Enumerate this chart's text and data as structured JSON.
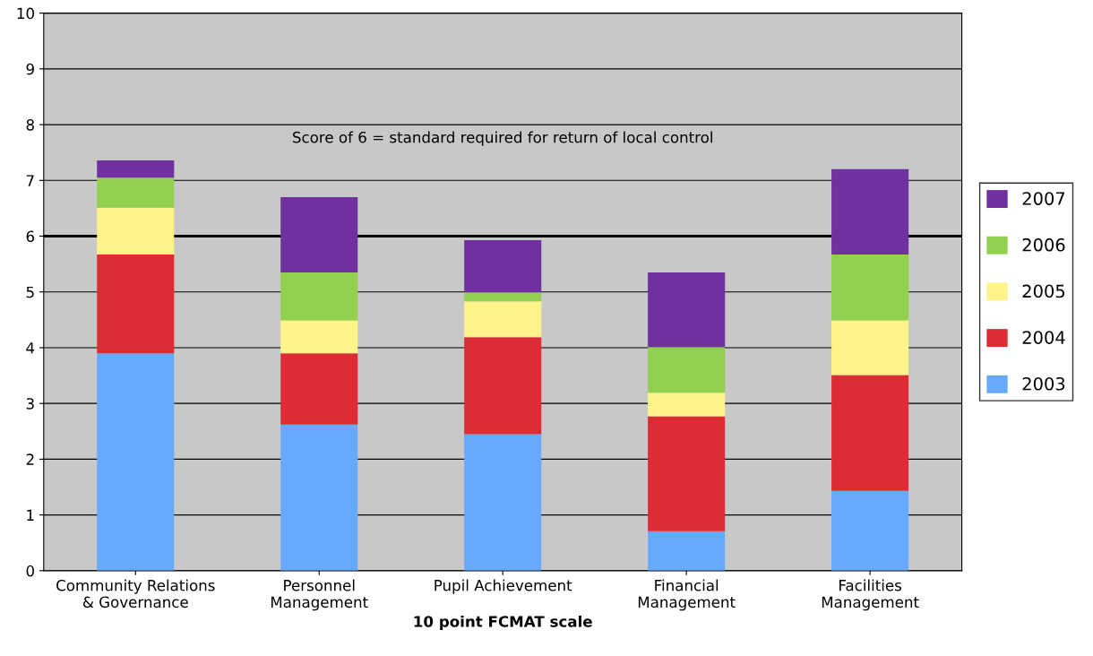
{
  "chart_data": {
    "type": "bar",
    "stacked": true,
    "xlabel": "10 point FCMAT scale",
    "categories": [
      "Community Relations\n& Governance",
      "Personnel\nManagement",
      "Pupil Achievement",
      "Financial\nManagement",
      "Facilities\nManagement"
    ],
    "series": [
      {
        "name": "2003",
        "color": "#66aaff",
        "values": [
          3.9,
          2.62,
          2.45,
          0.71,
          1.43
        ]
      },
      {
        "name": "2004",
        "color": "#dd2c33",
        "values": [
          1.77,
          1.28,
          1.74,
          2.06,
          2.08
        ]
      },
      {
        "name": "2005",
        "color": "#fff38a",
        "values": [
          0.84,
          0.59,
          0.64,
          0.42,
          0.98
        ]
      },
      {
        "name": "2006",
        "color": "#92d050",
        "values": [
          0.54,
          0.86,
          0.16,
          0.82,
          1.18
        ]
      },
      {
        "name": "2007",
        "color": "#7030a0",
        "values": [
          0.31,
          1.35,
          0.94,
          1.34,
          1.53
        ]
      }
    ],
    "ylim": [
      0,
      10
    ],
    "yticks": [
      0,
      1,
      2,
      3,
      4,
      5,
      6,
      7,
      8,
      9,
      10
    ],
    "ref_lines": [
      {
        "axis": "y",
        "value": 6,
        "color": "#000000"
      }
    ],
    "annotations": [
      "Score of 6 = standard required for return of local control"
    ],
    "grid": "y",
    "legend": "right"
  }
}
